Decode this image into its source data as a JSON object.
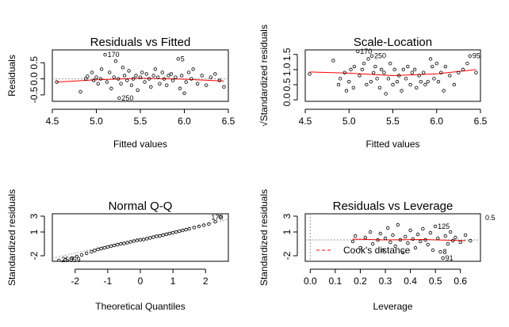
{
  "colors": {
    "smooth": "#ff0000",
    "points": "#000000",
    "reference": "#9a9a9a",
    "cook": "#ff0000"
  },
  "chart_data": [
    {
      "id": "resfit",
      "type": "scatter",
      "title": "Residuals vs Fitted",
      "xlabel": "Fitted values",
      "ylabel": "Residuals",
      "xlim": [
        4.5,
        6.5
      ],
      "ylim": [
        -0.7,
        0.9
      ],
      "xticks": [
        4.5,
        5.0,
        5.5,
        6.0,
        6.5
      ],
      "xticklabels": [
        "4.5",
        "5.0",
        "5.5",
        "6.0",
        "6.5"
      ],
      "yticks": [
        -0.5,
        0.0,
        0.5
      ],
      "yticklabels": [
        "-0.5",
        "0.0",
        "0.5"
      ],
      "reference_line": {
        "y": 0
      },
      "smooth": [
        [
          4.55,
          -0.1
        ],
        [
          5.0,
          -0.03
        ],
        [
          5.5,
          0.02
        ],
        [
          6.0,
          -0.01
        ],
        [
          6.45,
          -0.07
        ]
      ],
      "point_labels": [
        {
          "text": "170",
          "x": 5.1,
          "y": 0.75
        },
        {
          "text": "5",
          "x": 5.93,
          "y": 0.62
        },
        {
          "text": "250",
          "x": 5.26,
          "y": -0.6
        }
      ],
      "points": [
        [
          4.55,
          -0.1
        ],
        [
          4.82,
          -0.4
        ],
        [
          4.88,
          0.0
        ],
        [
          4.9,
          0.08
        ],
        [
          4.95,
          0.2
        ],
        [
          4.97,
          -0.05
        ],
        [
          5.0,
          0.05
        ],
        [
          5.02,
          -0.15
        ],
        [
          5.05,
          0.0
        ],
        [
          5.06,
          0.3
        ],
        [
          5.1,
          0.75
        ],
        [
          5.12,
          -0.1
        ],
        [
          5.15,
          0.2
        ],
        [
          5.17,
          -0.3
        ],
        [
          5.2,
          0.05
        ],
        [
          5.22,
          0.55
        ],
        [
          5.25,
          0.0
        ],
        [
          5.26,
          -0.6
        ],
        [
          5.28,
          -0.15
        ],
        [
          5.3,
          0.35
        ],
        [
          5.32,
          0.1
        ],
        [
          5.35,
          -0.05
        ],
        [
          5.37,
          0.25
        ],
        [
          5.4,
          -0.2
        ],
        [
          5.42,
          0.0
        ],
        [
          5.45,
          0.1
        ],
        [
          5.47,
          -0.35
        ],
        [
          5.5,
          0.05
        ],
        [
          5.52,
          0.2
        ],
        [
          5.55,
          -0.1
        ],
        [
          5.57,
          0.15
        ],
        [
          5.6,
          0.0
        ],
        [
          5.62,
          -0.25
        ],
        [
          5.65,
          0.1
        ],
        [
          5.67,
          0.3
        ],
        [
          5.7,
          0.05
        ],
        [
          5.72,
          -0.15
        ],
        [
          5.75,
          0.2
        ],
        [
          5.77,
          0.0
        ],
        [
          5.8,
          -0.2
        ],
        [
          5.82,
          0.1
        ],
        [
          5.85,
          0.15
        ],
        [
          5.87,
          -0.05
        ],
        [
          5.9,
          0.05
        ],
        [
          5.93,
          0.62
        ],
        [
          5.95,
          -0.3
        ],
        [
          5.97,
          0.1
        ],
        [
          6.0,
          -0.45
        ],
        [
          6.02,
          -0.1
        ],
        [
          6.05,
          0.2
        ],
        [
          6.08,
          0.0
        ],
        [
          6.1,
          0.3
        ],
        [
          6.15,
          -0.15
        ],
        [
          6.2,
          0.1
        ],
        [
          6.25,
          -0.2
        ],
        [
          6.3,
          0.05
        ],
        [
          6.35,
          0.15
        ],
        [
          6.4,
          -0.05
        ],
        [
          6.45,
          -0.25
        ]
      ]
    },
    {
      "id": "scaleloc",
      "type": "scatter",
      "title": "Scale-Location",
      "xlabel": "Fitted values",
      "ylabel": "√Standardized residuals",
      "xlim": [
        4.5,
        6.5
      ],
      "ylim": [
        -0.05,
        1.65
      ],
      "xticks": [
        4.5,
        5.0,
        5.5,
        6.0,
        6.5
      ],
      "xticklabels": [
        "4.5",
        "5.0",
        "5.5",
        "6.0",
        "6.5"
      ],
      "yticks": [
        0.0,
        0.5,
        1.0,
        1.5
      ],
      "yticklabels": [
        "0.0",
        "0.5",
        "1.0",
        "1.5"
      ],
      "smooth": [
        [
          4.55,
          0.92
        ],
        [
          5.0,
          0.88
        ],
        [
          5.5,
          0.8
        ],
        [
          6.0,
          0.86
        ],
        [
          6.45,
          1.0
        ]
      ],
      "point_labels": [
        {
          "text": "170",
          "x": 5.1,
          "y": 1.6
        },
        {
          "text": "250",
          "x": 5.26,
          "y": 1.45
        },
        {
          "text": "95",
          "x": 6.38,
          "y": 1.45
        }
      ],
      "points": [
        [
          4.55,
          0.85
        ],
        [
          4.82,
          1.3
        ],
        [
          4.88,
          0.5
        ],
        [
          4.9,
          0.7
        ],
        [
          4.95,
          0.9
        ],
        [
          4.97,
          0.3
        ],
        [
          5.0,
          0.6
        ],
        [
          5.02,
          1.0
        ],
        [
          5.05,
          0.4
        ],
        [
          5.06,
          1.1
        ],
        [
          5.1,
          1.6
        ],
        [
          5.12,
          0.8
        ],
        [
          5.15,
          1.0
        ],
        [
          5.17,
          1.2
        ],
        [
          5.2,
          0.5
        ],
        [
          5.22,
          1.35
        ],
        [
          5.25,
          0.6
        ],
        [
          5.26,
          1.45
        ],
        [
          5.28,
          0.9
        ],
        [
          5.3,
          1.1
        ],
        [
          5.32,
          0.7
        ],
        [
          5.35,
          0.4
        ],
        [
          5.37,
          1.0
        ],
        [
          5.4,
          0.9
        ],
        [
          5.42,
          0.2
        ],
        [
          5.45,
          0.7
        ],
        [
          5.47,
          1.2
        ],
        [
          5.5,
          0.5
        ],
        [
          5.52,
          1.0
        ],
        [
          5.55,
          0.6
        ],
        [
          5.57,
          0.8
        ],
        [
          5.6,
          0.3
        ],
        [
          5.62,
          1.0
        ],
        [
          5.65,
          0.7
        ],
        [
          5.67,
          1.1
        ],
        [
          5.7,
          0.5
        ],
        [
          5.72,
          0.9
        ],
        [
          5.75,
          1.0
        ],
        [
          5.77,
          0.4
        ],
        [
          5.8,
          0.8
        ],
        [
          5.82,
          0.6
        ],
        [
          5.85,
          0.9
        ],
        [
          5.87,
          0.5
        ],
        [
          5.9,
          0.6
        ],
        [
          5.93,
          1.35
        ],
        [
          5.95,
          1.1
        ],
        [
          5.97,
          0.7
        ],
        [
          6.0,
          1.2
        ],
        [
          6.02,
          0.6
        ],
        [
          6.05,
          0.9
        ],
        [
          6.08,
          0.3
        ],
        [
          6.1,
          1.1
        ],
        [
          6.15,
          0.8
        ],
        [
          6.2,
          0.5
        ],
        [
          6.25,
          0.9
        ],
        [
          6.3,
          1.0
        ],
        [
          6.35,
          1.2
        ],
        [
          6.38,
          1.45
        ],
        [
          6.45,
          0.9
        ]
      ]
    },
    {
      "id": "qq",
      "type": "scatter",
      "title": "Normal Q-Q",
      "xlabel": "Theoretical Quantiles",
      "ylabel": "Standardized residuals",
      "xlim": [
        -2.7,
        2.7
      ],
      "ylim": [
        -2.7,
        3.3
      ],
      "xticks": [
        -2,
        -1,
        0,
        1,
        2
      ],
      "xticklabels": [
        "-2",
        "-1",
        "0",
        "1",
        "2"
      ],
      "yticks": [
        -2,
        1,
        3
      ],
      "yticklabels": [
        "-2",
        "1",
        "3"
      ],
      "qq_line": [
        [
          -2.7,
          -2.3
        ],
        [
          2.7,
          2.6
        ]
      ],
      "point_labels": [
        {
          "text": "170",
          "x": 2.1,
          "y": 2.85
        },
        {
          "text": "250",
          "x": -2.5,
          "y": -2.5
        },
        {
          "text": "59",
          "x": -2.15,
          "y": -2.5
        }
      ],
      "points": [
        [
          -2.5,
          -2.6
        ],
        [
          -2.3,
          -2.5
        ],
        [
          -2.1,
          -2.3
        ],
        [
          -1.95,
          -2.1
        ],
        [
          -1.8,
          -1.9
        ],
        [
          -1.65,
          -1.7
        ],
        [
          -1.5,
          -1.5
        ],
        [
          -1.4,
          -1.35
        ],
        [
          -1.3,
          -1.2
        ],
        [
          -1.2,
          -1.1
        ],
        [
          -1.1,
          -1.0
        ],
        [
          -1.0,
          -0.9
        ],
        [
          -0.9,
          -0.8
        ],
        [
          -0.8,
          -0.7
        ],
        [
          -0.7,
          -0.6
        ],
        [
          -0.6,
          -0.5
        ],
        [
          -0.5,
          -0.45
        ],
        [
          -0.4,
          -0.35
        ],
        [
          -0.3,
          -0.25
        ],
        [
          -0.2,
          -0.15
        ],
        [
          -0.1,
          -0.05
        ],
        [
          0.0,
          0.0
        ],
        [
          0.1,
          0.05
        ],
        [
          0.2,
          0.15
        ],
        [
          0.3,
          0.25
        ],
        [
          0.4,
          0.35
        ],
        [
          0.5,
          0.45
        ],
        [
          0.6,
          0.5
        ],
        [
          0.7,
          0.6
        ],
        [
          0.8,
          0.7
        ],
        [
          0.9,
          0.8
        ],
        [
          1.0,
          0.9
        ],
        [
          1.1,
          1.0
        ],
        [
          1.2,
          1.1
        ],
        [
          1.3,
          1.2
        ],
        [
          1.4,
          1.3
        ],
        [
          1.5,
          1.4
        ],
        [
          1.65,
          1.55
        ],
        [
          1.8,
          1.7
        ],
        [
          1.95,
          1.85
        ],
        [
          2.1,
          2.0
        ],
        [
          2.3,
          2.3
        ],
        [
          2.45,
          2.9
        ]
      ]
    },
    {
      "id": "resleverage",
      "type": "scatter",
      "title": "Residuals vs Leverage",
      "xlabel": "Leverage",
      "ylabel": "Standardized residuals",
      "xlim": [
        -0.02,
        0.68
      ],
      "ylim": [
        -2.7,
        3.3
      ],
      "xticks": [
        0.0,
        0.1,
        0.2,
        0.3,
        0.4,
        0.5,
        0.6
      ],
      "xticklabels": [
        "0.0",
        "0.1",
        "0.2",
        "0.3",
        "0.4",
        "0.5",
        "0.6"
      ],
      "yticks": [
        -2,
        1,
        3
      ],
      "yticklabels": [
        "-2",
        "1",
        "3"
      ],
      "reference_lines": {
        "y": 0,
        "x": 0
      },
      "smooth": [
        [
          0.17,
          0.1
        ],
        [
          0.3,
          0.0
        ],
        [
          0.45,
          0.05
        ],
        [
          0.62,
          -0.1
        ]
      ],
      "cook_contour_label": "0.5",
      "legend": {
        "label": "Cook's distance",
        "position": "bottom-left"
      },
      "point_labels": [
        {
          "text": "125",
          "x": 0.5,
          "y": 1.7
        },
        {
          "text": "8",
          "x": 0.52,
          "y": -1.5
        },
        {
          "text": "91",
          "x": 0.53,
          "y": -2.3
        }
      ],
      "points": [
        [
          0.17,
          -0.2
        ],
        [
          0.18,
          0.5
        ],
        [
          0.2,
          -1.0
        ],
        [
          0.22,
          0.3
        ],
        [
          0.24,
          1.0
        ],
        [
          0.25,
          -0.5
        ],
        [
          0.27,
          0.0
        ],
        [
          0.28,
          0.8
        ],
        [
          0.29,
          -1.3
        ],
        [
          0.3,
          0.2
        ],
        [
          0.31,
          1.5
        ],
        [
          0.32,
          -0.3
        ],
        [
          0.33,
          0.6
        ],
        [
          0.34,
          -0.8
        ],
        [
          0.35,
          1.9
        ],
        [
          0.36,
          0.0
        ],
        [
          0.37,
          -1.6
        ],
        [
          0.38,
          0.4
        ],
        [
          0.39,
          -0.4
        ],
        [
          0.4,
          1.2
        ],
        [
          0.41,
          0.1
        ],
        [
          0.42,
          -1.0
        ],
        [
          0.43,
          0.7
        ],
        [
          0.44,
          -0.2
        ],
        [
          0.45,
          1.4
        ],
        [
          0.46,
          0.0
        ],
        [
          0.47,
          -0.6
        ],
        [
          0.48,
          0.9
        ],
        [
          0.49,
          -1.3
        ],
        [
          0.5,
          1.7
        ],
        [
          0.51,
          0.2
        ],
        [
          0.52,
          -1.5
        ],
        [
          0.53,
          -2.3
        ],
        [
          0.54,
          0.5
        ],
        [
          0.55,
          -0.5
        ],
        [
          0.56,
          1.0
        ],
        [
          0.57,
          -0.1
        ],
        [
          0.58,
          0.3
        ],
        [
          0.6,
          -0.3
        ],
        [
          0.62,
          0.6
        ],
        [
          0.64,
          -0.1
        ]
      ]
    }
  ]
}
